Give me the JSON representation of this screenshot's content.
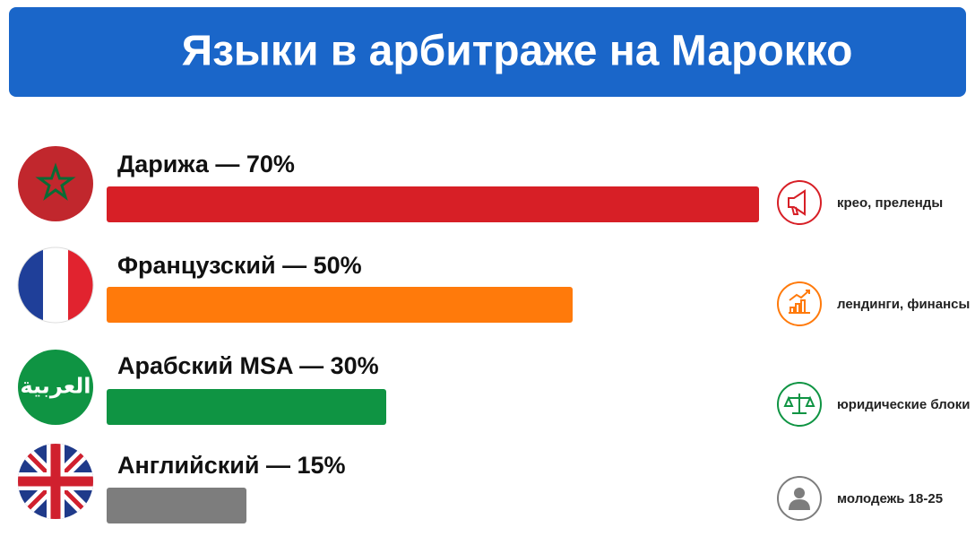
{
  "chart_data": {
    "type": "bar",
    "orientation": "horizontal",
    "title": "Языки в арбитраже на Марокко",
    "categories": [
      "Дарижа",
      "Французский",
      "Арабский MSA",
      "Английский"
    ],
    "separator": "—",
    "values": [
      70,
      50,
      30,
      15
    ],
    "value_labels": [
      "70%",
      "50%",
      "30%",
      "15%"
    ],
    "colors": [
      "#d71f26",
      "#ff7a0b",
      "#0f9443",
      "#7d7d7d"
    ],
    "notes": [
      "крео, преленды",
      "лендинги, финансы",
      "юридические блоки",
      "молодежь 18-25"
    ],
    "flag_label": "العربية"
  }
}
